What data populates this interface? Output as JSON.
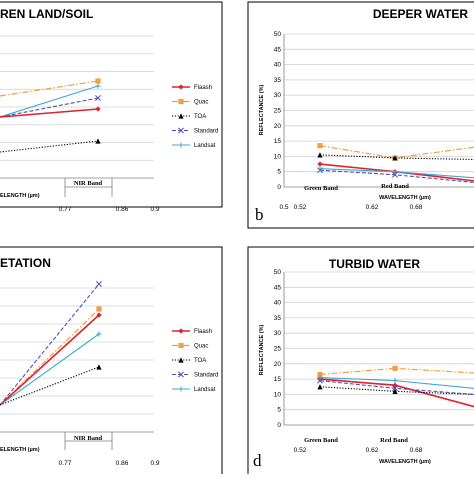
{
  "legend_labels": [
    "Flaash",
    "Quac",
    "TOA",
    "Standard",
    "Landsat"
  ],
  "series_colors": {
    "Flaash": "#e0202a",
    "Quac": "#f0a040",
    "TOA": "#000000",
    "Standard": "#5050b8",
    "Landsat": "#40a8d0"
  },
  "chart_data": [
    {
      "id": "a",
      "type": "line",
      "title": "REN LAND/SOIL",
      "xlabel": "ELENGTH (µm)",
      "x_ticks": [
        "0.77",
        "0.86",
        "0.9"
      ],
      "band_labels": [
        "NIR Band"
      ],
      "legend": [
        "Flaash",
        "Quac",
        "TOA",
        "Standard",
        "Landsat"
      ],
      "series": []
    },
    {
      "id": "b",
      "type": "line",
      "title": "DEEPER WATER",
      "ylabel": "REFLECTANCE (%)",
      "xlabel": "WAVELENGTH (µm)",
      "ylim": [
        0,
        50
      ],
      "y_ticks": [
        "0",
        "5",
        "10",
        "15",
        "20",
        "25",
        "30",
        "35",
        "40",
        "45",
        "50"
      ],
      "x_ticks": [
        "0.5",
        "0.52",
        "0.62",
        "0.68"
      ],
      "band_labels": [
        "Green Band",
        "Red Band"
      ],
      "panel_letter": "b",
      "series": [
        {
          "name": "Flaash",
          "values": [
            7.5,
            5,
            2
          ]
        },
        {
          "name": "Quac",
          "values": [
            13.5,
            9.5,
            13
          ]
        },
        {
          "name": "TOA",
          "values": [
            10.5,
            9.5,
            9
          ]
        },
        {
          "name": "Standard",
          "values": [
            5.5,
            4,
            1.5
          ]
        },
        {
          "name": "Landsat",
          "values": [
            6,
            5,
            3
          ]
        }
      ]
    },
    {
      "id": "c",
      "type": "line",
      "title": "ETATION",
      "xlabel": "ELENGTH (µm)",
      "x_ticks": [
        "0.77",
        "0.86",
        "0.9"
      ],
      "band_labels": [
        "NIR Band"
      ],
      "legend": [
        "Flaash",
        "Quac",
        "TOA",
        "Standard",
        "Landsat"
      ],
      "series": []
    },
    {
      "id": "d",
      "type": "line",
      "title": "TURBID WATER",
      "ylabel": "REFLECTANCE (%)",
      "xlabel": "WAVELENGTH (µm)",
      "ylim": [
        0,
        50
      ],
      "y_ticks": [
        "0",
        "5",
        "10",
        "15",
        "20",
        "25",
        "30",
        "35",
        "40",
        "45",
        "50"
      ],
      "x_ticks": [
        "0.52",
        "0.62",
        "0.68"
      ],
      "band_labels": [
        "Green Band",
        "Red Band"
      ],
      "panel_letter": "d",
      "series": [
        {
          "name": "Flaash",
          "values": [
            15,
            13,
            6
          ]
        },
        {
          "name": "Quac",
          "values": [
            16.5,
            18.5,
            17
          ]
        },
        {
          "name": "TOA",
          "values": [
            12.5,
            11,
            10
          ]
        },
        {
          "name": "Standard",
          "values": [
            14.5,
            12,
            10
          ]
        },
        {
          "name": "Landsat",
          "values": [
            15.5,
            14.5,
            12
          ]
        }
      ]
    }
  ]
}
